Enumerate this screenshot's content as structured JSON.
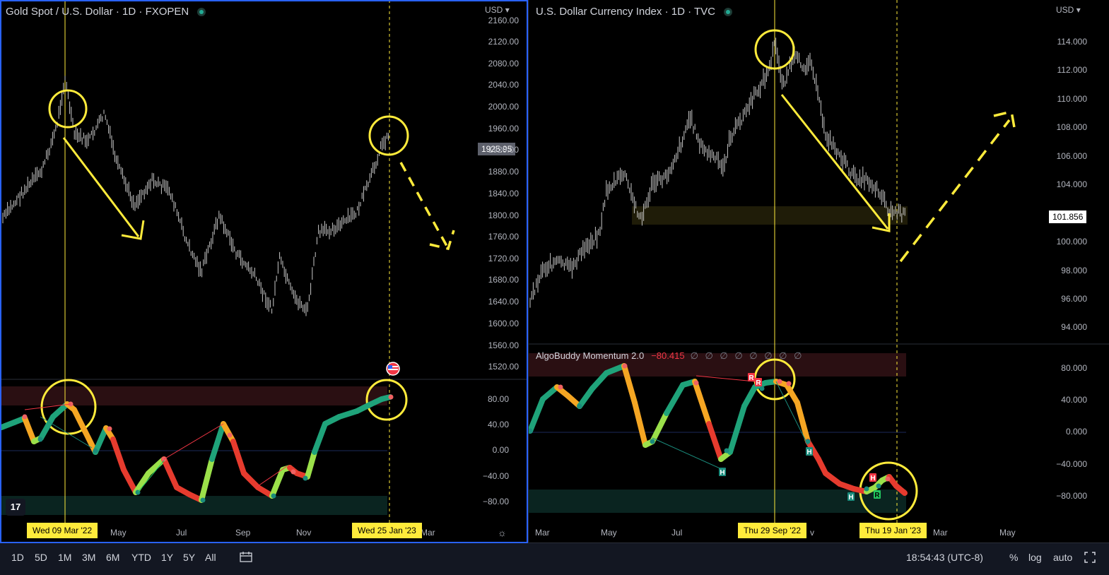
{
  "left": {
    "title": "Gold Spot / U.S. Dollar · 1D · FXOPEN",
    "currency": "USD",
    "price_axis": [
      "2160.00",
      "2120.00",
      "2080.00",
      "2040.00",
      "2000.00",
      "1960.00",
      "1920.00",
      "1880.00",
      "1840.00",
      "1800.00",
      "1760.00",
      "1720.00",
      "1680.00",
      "1640.00",
      "1600.00",
      "1560.00",
      "1520.00"
    ],
    "last_price": "1925.95",
    "indicator_axis": [
      "80.00",
      "40.00",
      "0.00",
      "−40.00",
      "−80.00"
    ],
    "time_axis": [
      "May",
      "Jul",
      "Sep",
      "Nov",
      "Mar"
    ],
    "crosshair_date_1": "Wed 09 Mar '22",
    "crosshair_date_2": "Wed 25 Jan '23"
  },
  "right": {
    "title": "U.S. Dollar Currency Index · 1D · TVC",
    "currency": "USD",
    "price_axis": [
      "114.000",
      "112.000",
      "110.000",
      "108.000",
      "106.000",
      "104.000",
      "100.000",
      "98.000",
      "96.000",
      "94.000"
    ],
    "last_price": "101.856",
    "indicator": {
      "name": "AlgoBuddy Momentum 2.0",
      "value": "−80.415",
      "nulls": "∅ ∅ ∅ ∅ ∅ ∅ ∅ ∅"
    },
    "indicator_axis": [
      "80.000",
      "40.000",
      "0.000",
      "−40.000",
      "−80.000"
    ],
    "time_axis": [
      "Mar",
      "May",
      "Jul",
      "v",
      "Mar",
      "May"
    ],
    "crosshair_date_1": "Thu 29 Sep '22",
    "crosshair_date_2": "Thu 19 Jan '23"
  },
  "bottom_bar": {
    "timeframes": [
      "1D",
      "5D",
      "1M",
      "3M",
      "6M",
      "YTD",
      "1Y",
      "5Y",
      "All"
    ],
    "clock": "18:54:43 (UTC-8)",
    "percent": "%",
    "log": "log",
    "auto": "auto"
  },
  "colors": {
    "accent": "#ffeb3b",
    "up": "#22ab94",
    "down": "#f23645",
    "border": "#2962ff"
  }
}
